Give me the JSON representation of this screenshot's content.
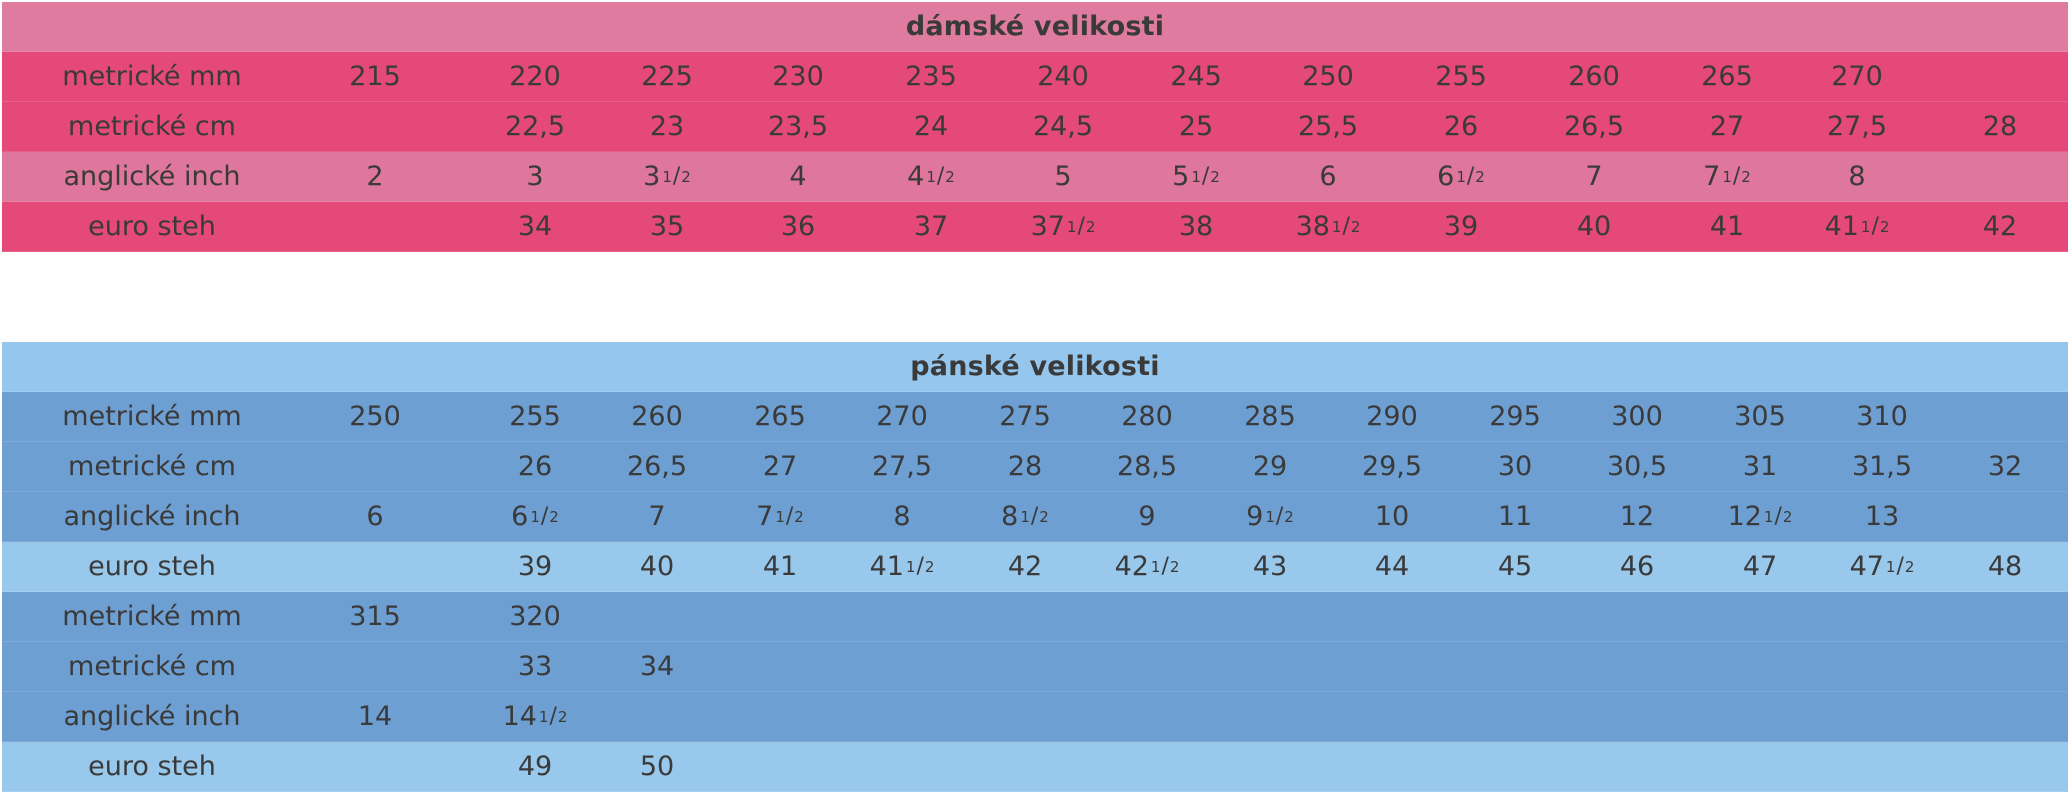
{
  "women": {
    "title": "dámské velikosti",
    "rows": [
      {
        "label": "metrické mm",
        "tone": "dark",
        "cells": [
          "215",
          "220",
          "225",
          "230",
          "235",
          "240",
          "245",
          "250",
          "255",
          "260",
          "265",
          "270",
          ""
        ]
      },
      {
        "label": "metrické cm",
        "tone": "dark",
        "cells": [
          "",
          "22,5",
          "23",
          "23,5",
          "24",
          "24,5",
          "25",
          "25,5",
          "26",
          "26,5",
          "27",
          "27,5",
          "28"
        ]
      },
      {
        "label": "anglické inch",
        "tone": "light",
        "cells": [
          "2",
          "3",
          "3|1|2",
          "4",
          "4|1|2",
          "5",
          "5|1|2",
          "6",
          "6|1|2",
          "7",
          "7|1|2",
          "8",
          ""
        ]
      },
      {
        "label": "euro steh",
        "tone": "dark",
        "cells": [
          "",
          "34",
          "35",
          "36",
          "37",
          "37|1|2",
          "38",
          "38|1|2",
          "39",
          "40",
          "41",
          "41|1|2",
          "42"
        ]
      }
    ]
  },
  "men": {
    "title": "pánské velikosti",
    "rows": [
      {
        "label": "metrické mm",
        "tone": "dark",
        "cells": [
          "250",
          "255",
          "260",
          "265",
          "270",
          "275",
          "280",
          "285",
          "290",
          "295",
          "300",
          "305",
          "310",
          ""
        ]
      },
      {
        "label": "metrické cm",
        "tone": "dark",
        "cells": [
          "",
          "26",
          "26,5",
          "27",
          "27,5",
          "28",
          "28,5",
          "29",
          "29,5",
          "30",
          "30,5",
          "31",
          "31,5",
          "32"
        ]
      },
      {
        "label": "anglické inch",
        "tone": "dark",
        "cells": [
          "6",
          "6|1|2",
          "7",
          "7|1|2",
          "8",
          "8|1|2",
          "9",
          "9|1|2",
          "10",
          "11",
          "12",
          "12|1|2",
          "13",
          ""
        ]
      },
      {
        "label": "euro steh",
        "tone": "light",
        "cells": [
          "",
          "39",
          "40",
          "41",
          "41|1|2",
          "42",
          "42|1|2",
          "43",
          "44",
          "45",
          "46",
          "47",
          "47|1|2",
          "48"
        ]
      },
      {
        "label": "metrické mm",
        "tone": "dark",
        "cells": [
          "315",
          "320"
        ]
      },
      {
        "label": "metrické cm",
        "tone": "dark",
        "cells": [
          "",
          "33",
          "34"
        ]
      },
      {
        "label": "anglické inch",
        "tone": "dark",
        "cells": [
          "14",
          "14|1|2"
        ]
      },
      {
        "label": "euro steh",
        "tone": "light",
        "cells": [
          "",
          "49",
          "50"
        ]
      }
    ]
  }
}
